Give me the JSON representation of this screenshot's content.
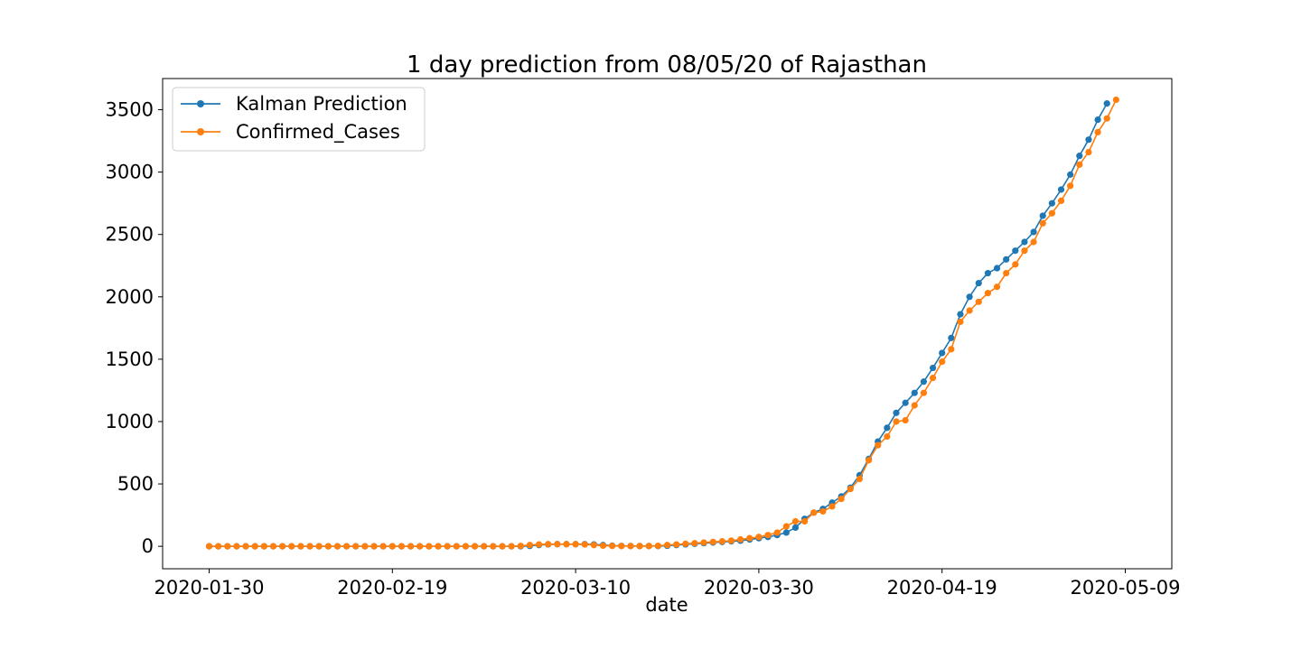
{
  "chart_data": {
    "type": "line",
    "title": "1 day prediction from 08/05/20 of Rajasthan",
    "xlabel": "date",
    "ylabel": "",
    "x_start": "2020-01-30",
    "x_end": "2020-05-09",
    "xticks": [
      "2020-01-30",
      "2020-02-19",
      "2020-03-10",
      "2020-03-30",
      "2020-04-19",
      "2020-05-09"
    ],
    "yticks": [
      0,
      500,
      1000,
      1500,
      2000,
      2500,
      3000,
      3500
    ],
    "ylim": [
      -180,
      3750
    ],
    "grid": false,
    "legend": "upper-left",
    "series": [
      {
        "name": "Kalman Prediction",
        "color": "#1f77b4",
        "values": [
          0,
          0,
          0,
          0,
          0,
          0,
          0,
          0,
          0,
          0,
          0,
          0,
          0,
          0,
          0,
          0,
          0,
          0,
          0,
          0,
          0,
          0,
          0,
          0,
          0,
          0,
          0,
          0,
          0,
          0,
          0,
          0,
          0,
          0,
          0,
          3,
          10,
          15,
          17,
          17,
          17,
          17,
          15,
          10,
          5,
          3,
          2,
          2,
          2,
          2,
          4,
          10,
          15,
          20,
          25,
          30,
          35,
          40,
          45,
          55,
          65,
          75,
          90,
          110,
          150,
          220,
          270,
          300,
          350,
          400,
          470,
          570,
          700,
          840,
          950,
          1070,
          1150,
          1230,
          1320,
          1430,
          1550,
          1670,
          1860,
          2000,
          2110,
          2190,
          2230,
          2300,
          2370,
          2440,
          2520,
          2650,
          2750,
          2860,
          2980,
          3130,
          3260,
          3420,
          3550
        ]
      },
      {
        "name": "Confirmed_Cases",
        "color": "#ff7f0e",
        "values": [
          0,
          0,
          0,
          0,
          0,
          0,
          0,
          0,
          0,
          0,
          0,
          0,
          0,
          0,
          0,
          0,
          0,
          0,
          0,
          0,
          0,
          0,
          0,
          0,
          0,
          0,
          0,
          0,
          0,
          0,
          0,
          0,
          0,
          0,
          3,
          10,
          15,
          17,
          17,
          17,
          17,
          15,
          10,
          5,
          3,
          2,
          2,
          2,
          2,
          4,
          10,
          15,
          20,
          25,
          30,
          35,
          40,
          45,
          55,
          65,
          75,
          90,
          110,
          160,
          200,
          200,
          270,
          280,
          320,
          380,
          460,
          540,
          690,
          810,
          880,
          1000,
          1010,
          1130,
          1230,
          1350,
          1480,
          1580,
          1800,
          1890,
          1960,
          2030,
          2080,
          2190,
          2260,
          2370,
          2440,
          2590,
          2670,
          2770,
          2890,
          3060,
          3160,
          3320,
          3430,
          3580
        ]
      }
    ]
  }
}
